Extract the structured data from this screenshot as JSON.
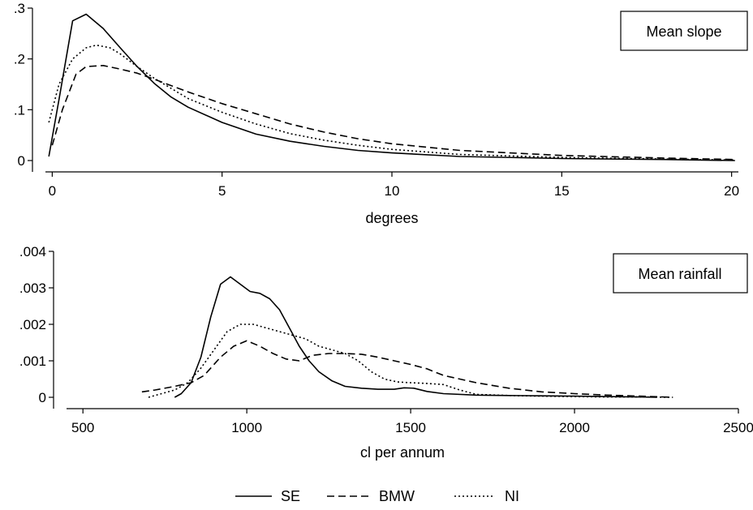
{
  "chart_data": [
    {
      "type": "line",
      "title": "Mean slope",
      "xlabel": "degrees",
      "ylabel": "",
      "xlim": [
        -0.2,
        20.2
      ],
      "ylim": [
        0,
        0.3
      ],
      "xticks": [
        0,
        5,
        10,
        15,
        20
      ],
      "xtick_labels": [
        "0",
        "5",
        "10",
        "15",
        "20"
      ],
      "yticks": [
        0,
        0.1,
        0.2,
        0.3
      ],
      "ytick_labels": [
        "0",
        ".1",
        ".2",
        ".3"
      ],
      "grid": false,
      "series": [
        {
          "name": "SE",
          "style": "solid",
          "x": [
            -0.1,
            0.2,
            0.6,
            1.0,
            1.5,
            2.0,
            2.5,
            3.0,
            3.5,
            4.0,
            5.0,
            6.0,
            7.0,
            8.0,
            9.0,
            10.0,
            12.0,
            15.0,
            18.0,
            20.1
          ],
          "y": [
            0.008,
            0.12,
            0.275,
            0.288,
            0.26,
            0.222,
            0.185,
            0.152,
            0.125,
            0.105,
            0.075,
            0.052,
            0.038,
            0.028,
            0.02,
            0.015,
            0.008,
            0.004,
            0.002,
            0.0
          ]
        },
        {
          "name": "BMW",
          "style": "dashed",
          "x": [
            0.0,
            0.3,
            0.7,
            1.0,
            1.5,
            2.0,
            2.5,
            3.0,
            4.0,
            5.0,
            6.0,
            7.0,
            8.0,
            9.0,
            10.0,
            12.0,
            15.0,
            18.0,
            20.1
          ],
          "y": [
            0.03,
            0.1,
            0.17,
            0.185,
            0.187,
            0.18,
            0.172,
            0.16,
            0.135,
            0.112,
            0.092,
            0.072,
            0.056,
            0.043,
            0.033,
            0.02,
            0.01,
            0.005,
            0.002
          ]
        },
        {
          "name": "NI",
          "style": "dotted",
          "x": [
            -0.1,
            0.2,
            0.6,
            1.0,
            1.3,
            1.7,
            2.0,
            2.5,
            3.0,
            4.0,
            5.0,
            6.0,
            7.0,
            8.0,
            9.0,
            10.0,
            12.0,
            15.0,
            18.0,
            20.1
          ],
          "y": [
            0.075,
            0.15,
            0.2,
            0.222,
            0.227,
            0.222,
            0.21,
            0.185,
            0.162,
            0.122,
            0.095,
            0.072,
            0.053,
            0.04,
            0.03,
            0.022,
            0.012,
            0.006,
            0.003,
            0.001
          ]
        }
      ],
      "annotation": "Mean slope"
    },
    {
      "type": "line",
      "title": "Mean rainfall",
      "xlabel": "cl per annum",
      "ylabel": "",
      "xlim": [
        450,
        2500
      ],
      "ylim": [
        0,
        0.004
      ],
      "xticks": [
        500,
        1000,
        1500,
        2000,
        2500
      ],
      "xtick_labels": [
        "500",
        "1000",
        "1500",
        "2000",
        "2500"
      ],
      "yticks": [
        0,
        0.001,
        0.002,
        0.003,
        0.004
      ],
      "ytick_labels": [
        "0",
        ".001",
        ".002",
        ".003",
        ".004"
      ],
      "grid": false,
      "series": [
        {
          "name": "SE",
          "style": "solid",
          "x": [
            780,
            800,
            830,
            860,
            890,
            920,
            950,
            980,
            1010,
            1040,
            1070,
            1100,
            1130,
            1160,
            1190,
            1220,
            1260,
            1300,
            1350,
            1400,
            1450,
            1480,
            1510,
            1550,
            1600,
            1700,
            1800,
            1900,
            2000,
            2100,
            2200,
            2250
          ],
          "y": [
            0.0,
            0.0001,
            0.0004,
            0.0011,
            0.0022,
            0.0031,
            0.0033,
            0.0031,
            0.0029,
            0.00285,
            0.0027,
            0.0024,
            0.0019,
            0.0014,
            0.001,
            0.0007,
            0.00045,
            0.0003,
            0.00025,
            0.00022,
            0.00022,
            0.00026,
            0.00025,
            0.00016,
            0.0001,
            6e-05,
            5e-05,
            4e-05,
            3e-05,
            2e-05,
            1e-05,
            0.0
          ]
        },
        {
          "name": "BMW",
          "style": "dashed",
          "x": [
            680,
            720,
            780,
            830,
            870,
            920,
            960,
            1000,
            1040,
            1080,
            1120,
            1160,
            1200,
            1250,
            1300,
            1350,
            1400,
            1450,
            1500,
            1550,
            1600,
            1700,
            1800,
            1900,
            2000,
            2100,
            2200,
            2300
          ],
          "y": [
            0.00015,
            0.0002,
            0.0003,
            0.0004,
            0.0006,
            0.0011,
            0.0014,
            0.00155,
            0.0014,
            0.0012,
            0.00105,
            0.001,
            0.00115,
            0.0012,
            0.0012,
            0.00118,
            0.0011,
            0.001,
            0.0009,
            0.00078,
            0.0006,
            0.0004,
            0.00025,
            0.00015,
            0.0001,
            6e-05,
            3e-05,
            0.0
          ]
        },
        {
          "name": "NI",
          "style": "dotted",
          "x": [
            700,
            740,
            780,
            820,
            860,
            900,
            940,
            980,
            1020,
            1060,
            1100,
            1140,
            1180,
            1220,
            1260,
            1300,
            1340,
            1380,
            1420,
            1460,
            1500,
            1550,
            1600,
            1650,
            1700,
            1800,
            1900,
            2000,
            2100,
            2200,
            2300
          ],
          "y": [
            0.0,
            0.0001,
            0.0002,
            0.0004,
            0.0008,
            0.0013,
            0.0018,
            0.002,
            0.002,
            0.0019,
            0.0018,
            0.0017,
            0.0016,
            0.0014,
            0.0013,
            0.0012,
            0.001,
            0.0007,
            0.0005,
            0.00042,
            0.0004,
            0.00038,
            0.00035,
            0.0002,
            8e-05,
            5e-05,
            3e-05,
            2e-05,
            1e-05,
            1e-05,
            0.0
          ]
        }
      ],
      "annotation": "Mean rainfall"
    }
  ],
  "legend": {
    "placement": "bottom",
    "items": [
      {
        "label": "SE",
        "style": "solid"
      },
      {
        "label": "BMW",
        "style": "dashed"
      },
      {
        "label": "NI",
        "style": "dotted"
      }
    ]
  }
}
